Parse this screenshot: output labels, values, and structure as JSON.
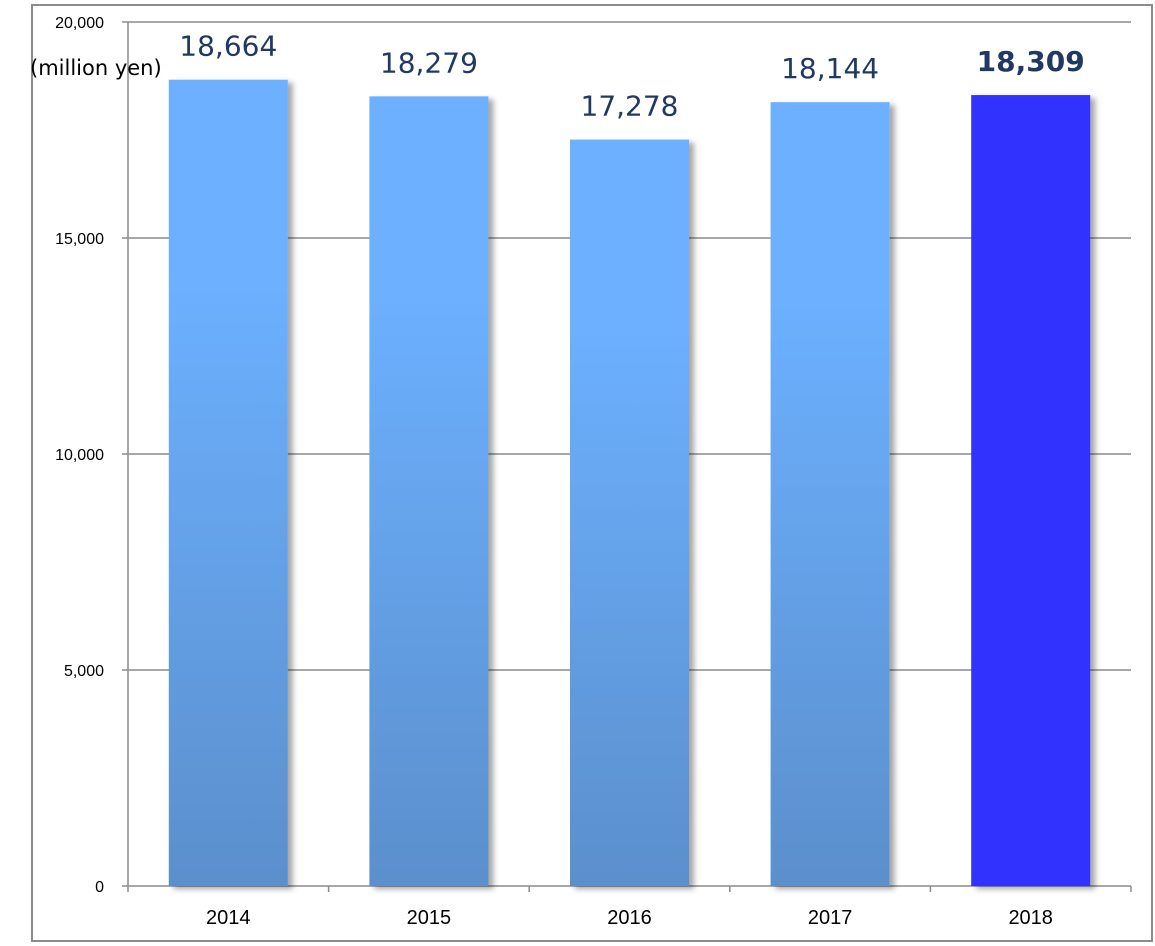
{
  "chart_data": {
    "type": "bar",
    "ylabel": "(million yen)",
    "categories": [
      "2014",
      "2015",
      "2016",
      "2017",
      "2018"
    ],
    "values": [
      18664,
      18279,
      17278,
      18144,
      18309
    ],
    "value_labels": [
      "18,664",
      "18,279",
      "17,278",
      "18,144",
      "18,309"
    ],
    "ylim": [
      0,
      20000
    ],
    "yticks": [
      0,
      5000,
      10000,
      15000,
      20000
    ],
    "ytick_labels": [
      "0",
      "5,000",
      "10,000",
      "15,000",
      "20,000"
    ],
    "highlight_index": 4,
    "colors": {
      "bar_top": "#6cb0ff",
      "bar_bottom": "#5b8fcc",
      "highlight": "#3333ff",
      "gridline": "#8c8c8c",
      "data_label": "#1f3864"
    },
    "grid": true,
    "legend": "none"
  }
}
